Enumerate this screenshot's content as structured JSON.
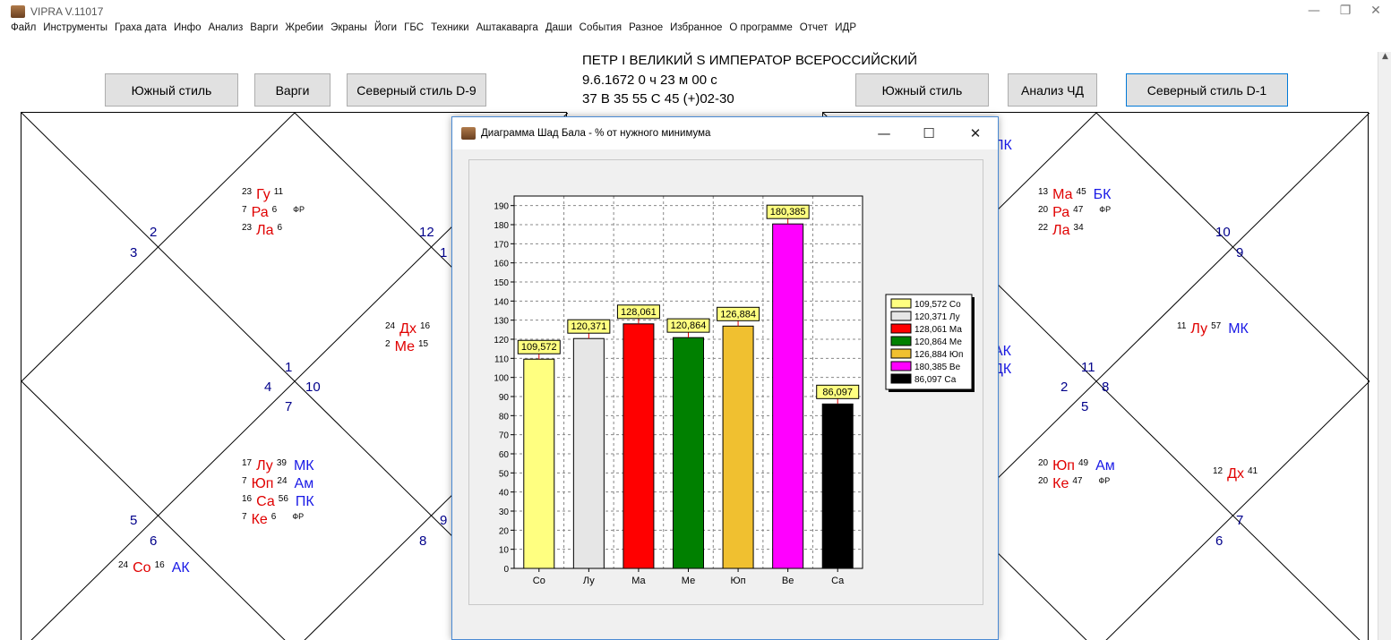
{
  "app": {
    "title": "VIPRA V.11017",
    "icon": "app-logo-icon",
    "window_controls": [
      "—",
      "❐",
      "✕"
    ]
  },
  "menu": [
    "Файл",
    "Инструменты",
    "Граха дата",
    "Инфо",
    "Анализ",
    "Варги",
    "Жребии",
    "Экраны",
    "Йоги",
    "ГБС",
    "Техники",
    "Аштакаварга",
    "Даши",
    "События",
    "Разное",
    "Избранное",
    "О программе",
    "Отчет",
    "ИДР"
  ],
  "left_buttons": {
    "south": "Южный стиль",
    "vargi": "Варги",
    "north_d9": "Северный стиль D-9"
  },
  "right_buttons": {
    "south": "Южный стиль",
    "analysis": "Анализ ЧД",
    "north_d1": "Северный стиль D-1"
  },
  "header": {
    "name": "ПЕТР I  ВЕЛИКИЙ S ИМПЕРАТОР ВСЕРОССИЙСКИЙ",
    "datetime": "9.6.1672   0 ч 23 м 00 с",
    "coords": "37 В 35   55 С 45   (+)02-30"
  },
  "left_chart": {
    "house_numbers": [
      {
        "t": "2",
        "x": 143,
        "y": 125
      },
      {
        "t": "3",
        "x": 121,
        "y": 148
      },
      {
        "t": "12",
        "x": 444,
        "y": 125
      },
      {
        "t": "1",
        "x": 467,
        "y": 148
      },
      {
        "t": "1",
        "x": 294,
        "y": 276
      },
      {
        "t": "4",
        "x": 271,
        "y": 298
      },
      {
        "t": "10",
        "x": 317,
        "y": 298
      },
      {
        "t": "7",
        "x": 294,
        "y": 320
      },
      {
        "t": "5",
        "x": 121,
        "y": 447
      },
      {
        "t": "6",
        "x": 143,
        "y": 470
      },
      {
        "t": "9",
        "x": 467,
        "y": 447
      },
      {
        "t": "8",
        "x": 444,
        "y": 470
      }
    ],
    "planets": [
      {
        "d": "23",
        "p": "Гу",
        "m": "11",
        "x": 246,
        "y": 83
      },
      {
        "d": "7",
        "p": "Ра",
        "m": "6",
        "x": 246,
        "y": 103,
        "fr": "ФР"
      },
      {
        "d": "23",
        "p": "Ла",
        "m": "6",
        "x": 246,
        "y": 123
      },
      {
        "d": "24",
        "p": "Дх",
        "m": "16",
        "x": 406,
        "y": 233
      },
      {
        "d": "2",
        "p": "Ме",
        "m": "15",
        "x": 406,
        "y": 253
      },
      {
        "d": "17",
        "p": "Лу",
        "m": "39",
        "k": "МК",
        "x": 246,
        "y": 386
      },
      {
        "d": "7",
        "p": "Юп",
        "m": "24",
        "k": "Ам",
        "x": 246,
        "y": 406
      },
      {
        "d": "16",
        "p": "Са",
        "m": "56",
        "k": "ПК",
        "x": 246,
        "y": 426
      },
      {
        "d": "7",
        "p": "Ке",
        "m": "6",
        "x": 246,
        "y": 446,
        "fr": "ФР"
      },
      {
        "d": "24",
        "p": "Со",
        "m": "16",
        "k": "АК",
        "x": 108,
        "y": 500
      }
    ]
  },
  "right_chart": {
    "house_numbers": [
      {
        "t": "10",
        "x": 438,
        "y": 125
      },
      {
        "t": "9",
        "x": 461,
        "y": 148
      },
      {
        "t": "11",
        "x": 288,
        "y": 276
      },
      {
        "t": "2",
        "x": 265,
        "y": 298
      },
      {
        "t": "8",
        "x": 311,
        "y": 298
      },
      {
        "t": "5",
        "x": 288,
        "y": 320
      },
      {
        "t": "7",
        "x": 461,
        "y": 447
      },
      {
        "t": "6",
        "x": 438,
        "y": 470
      }
    ],
    "planets": [
      {
        "d": "13",
        "p": "Ма",
        "m": "45",
        "k": "БК",
        "x": 240,
        "y": 83
      },
      {
        "d": "20",
        "p": "Ра",
        "m": "47",
        "x": 240,
        "y": 103,
        "fr": "ФР"
      },
      {
        "d": "22",
        "p": "Ла",
        "m": "34",
        "x": 240,
        "y": 123
      },
      {
        "d": "11",
        "p": "Лу",
        "m": "57",
        "k": "МК",
        "x": 395,
        "y": 233
      },
      {
        "d": "20",
        "p": "Юп",
        "m": "49",
        "k": "Ам",
        "x": 240,
        "y": 386
      },
      {
        "d": "20",
        "p": "Ке",
        "m": "47",
        "x": 240,
        "y": 406,
        "fr": "ФР"
      },
      {
        "d": "12",
        "p": "Дх",
        "m": "41",
        "x": 435,
        "y": 395
      }
    ],
    "edge_labels": [
      {
        "t": "ПК",
        "x": 190,
        "y": 28
      },
      {
        "t": "АК",
        "x": 190,
        "y": 258
      },
      {
        "t": "ДК",
        "x": 190,
        "y": 278
      }
    ]
  },
  "dialog": {
    "title": "Диаграмма Шад Бала - % от нужного минимума",
    "icon": "app-logo-icon",
    "controls": [
      "—",
      "☐",
      "✕"
    ]
  },
  "chart_data": {
    "type": "bar",
    "title": "",
    "xlabel": "",
    "ylabel": "",
    "ylim": [
      0,
      195
    ],
    "yticks": [
      0,
      10,
      20,
      30,
      40,
      50,
      60,
      70,
      80,
      90,
      100,
      110,
      120,
      130,
      140,
      150,
      160,
      170,
      180,
      190
    ],
    "grid": true,
    "legend_position": "right",
    "categories": [
      "Со",
      "Лу",
      "Ма",
      "Ме",
      "Юп",
      "Ве",
      "Са"
    ],
    "values": [
      109.572,
      120.371,
      128.061,
      120.864,
      126.884,
      180.385,
      86.097
    ],
    "data_labels": [
      "109,572",
      "120,371",
      "128,061",
      "120,864",
      "126,884",
      "180,385",
      "86,097"
    ],
    "legend": [
      "109,572 Со",
      "120,371 Лу",
      "128,061 Ма",
      "120,864 Ме",
      "126,884 Юп",
      "180,385 Ве",
      "86,097 Са"
    ],
    "colors": [
      "#ffff80",
      "#e6e6e6",
      "#ff0000",
      "#008000",
      "#f0c030",
      "#ff00ff",
      "#000000"
    ],
    "label_bg": "#ffff80"
  }
}
